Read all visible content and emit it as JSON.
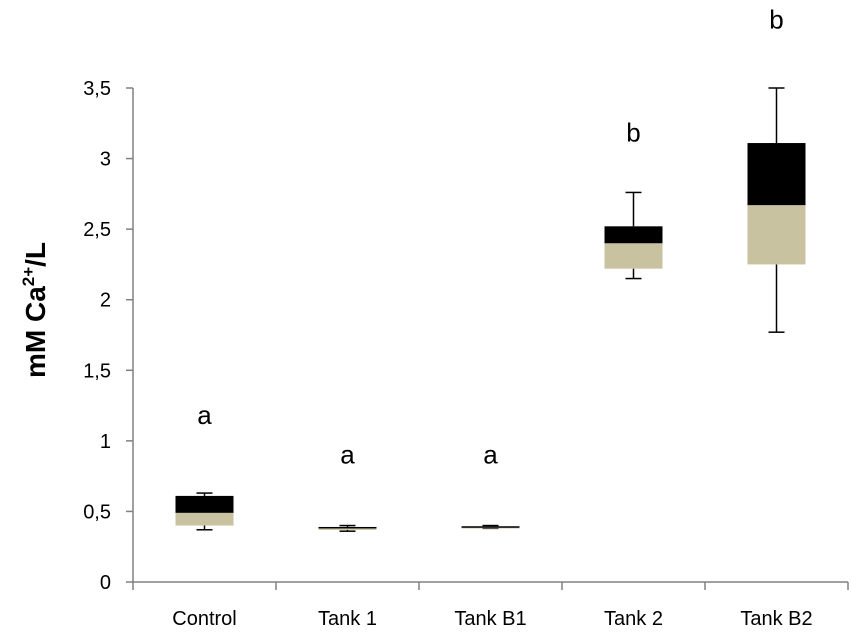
{
  "chart_data": {
    "type": "boxplot",
    "ylabel": {
      "main": "mM Ca",
      "sup": "2+",
      "tail": "/L"
    },
    "ylim": [
      0,
      3.5
    ],
    "yticks": [
      {
        "value": 0,
        "label": "0"
      },
      {
        "value": 0.5,
        "label": "0,5"
      },
      {
        "value": 1,
        "label": "1"
      },
      {
        "value": 1.5,
        "label": "1,5"
      },
      {
        "value": 2,
        "label": "2"
      },
      {
        "value": 2.5,
        "label": "2,5"
      },
      {
        "value": 3,
        "label": "3"
      },
      {
        "value": 3.5,
        "label": "3,5"
      }
    ],
    "categories": [
      "Control",
      "Tank 1",
      "Tank B1",
      "Tank 2",
      "Tank B2"
    ],
    "boxes": [
      {
        "category": "Control",
        "min": 0.37,
        "q1": 0.4,
        "median": 0.49,
        "q3": 0.61,
        "max": 0.63,
        "group": "a",
        "group_label_y": 1.12
      },
      {
        "category": "Tank 1",
        "min": 0.36,
        "q1": 0.37,
        "median": 0.38,
        "q3": 0.39,
        "max": 0.4,
        "group": "a",
        "group_label_y": 0.84
      },
      {
        "category": "Tank B1",
        "min": 0.38,
        "q1": 0.385,
        "median": 0.39,
        "q3": 0.395,
        "max": 0.4,
        "group": "a",
        "group_label_y": 0.84
      },
      {
        "category": "Tank 2",
        "min": 2.15,
        "q1": 2.22,
        "median": 2.4,
        "q3": 2.52,
        "max": 2.76,
        "group": "b",
        "group_label_y": 3.12
      },
      {
        "category": "Tank B2",
        "min": 1.77,
        "q1": 2.25,
        "median": 2.67,
        "q3": 3.11,
        "max": 3.5,
        "group": "b",
        "group_label_y": 3.92
      }
    ],
    "colors": {
      "lower_box": "#c9c2a0",
      "upper_box": "#000000",
      "axis": "#808080",
      "whisker": "#000000"
    },
    "grid": false,
    "legend": "none"
  }
}
